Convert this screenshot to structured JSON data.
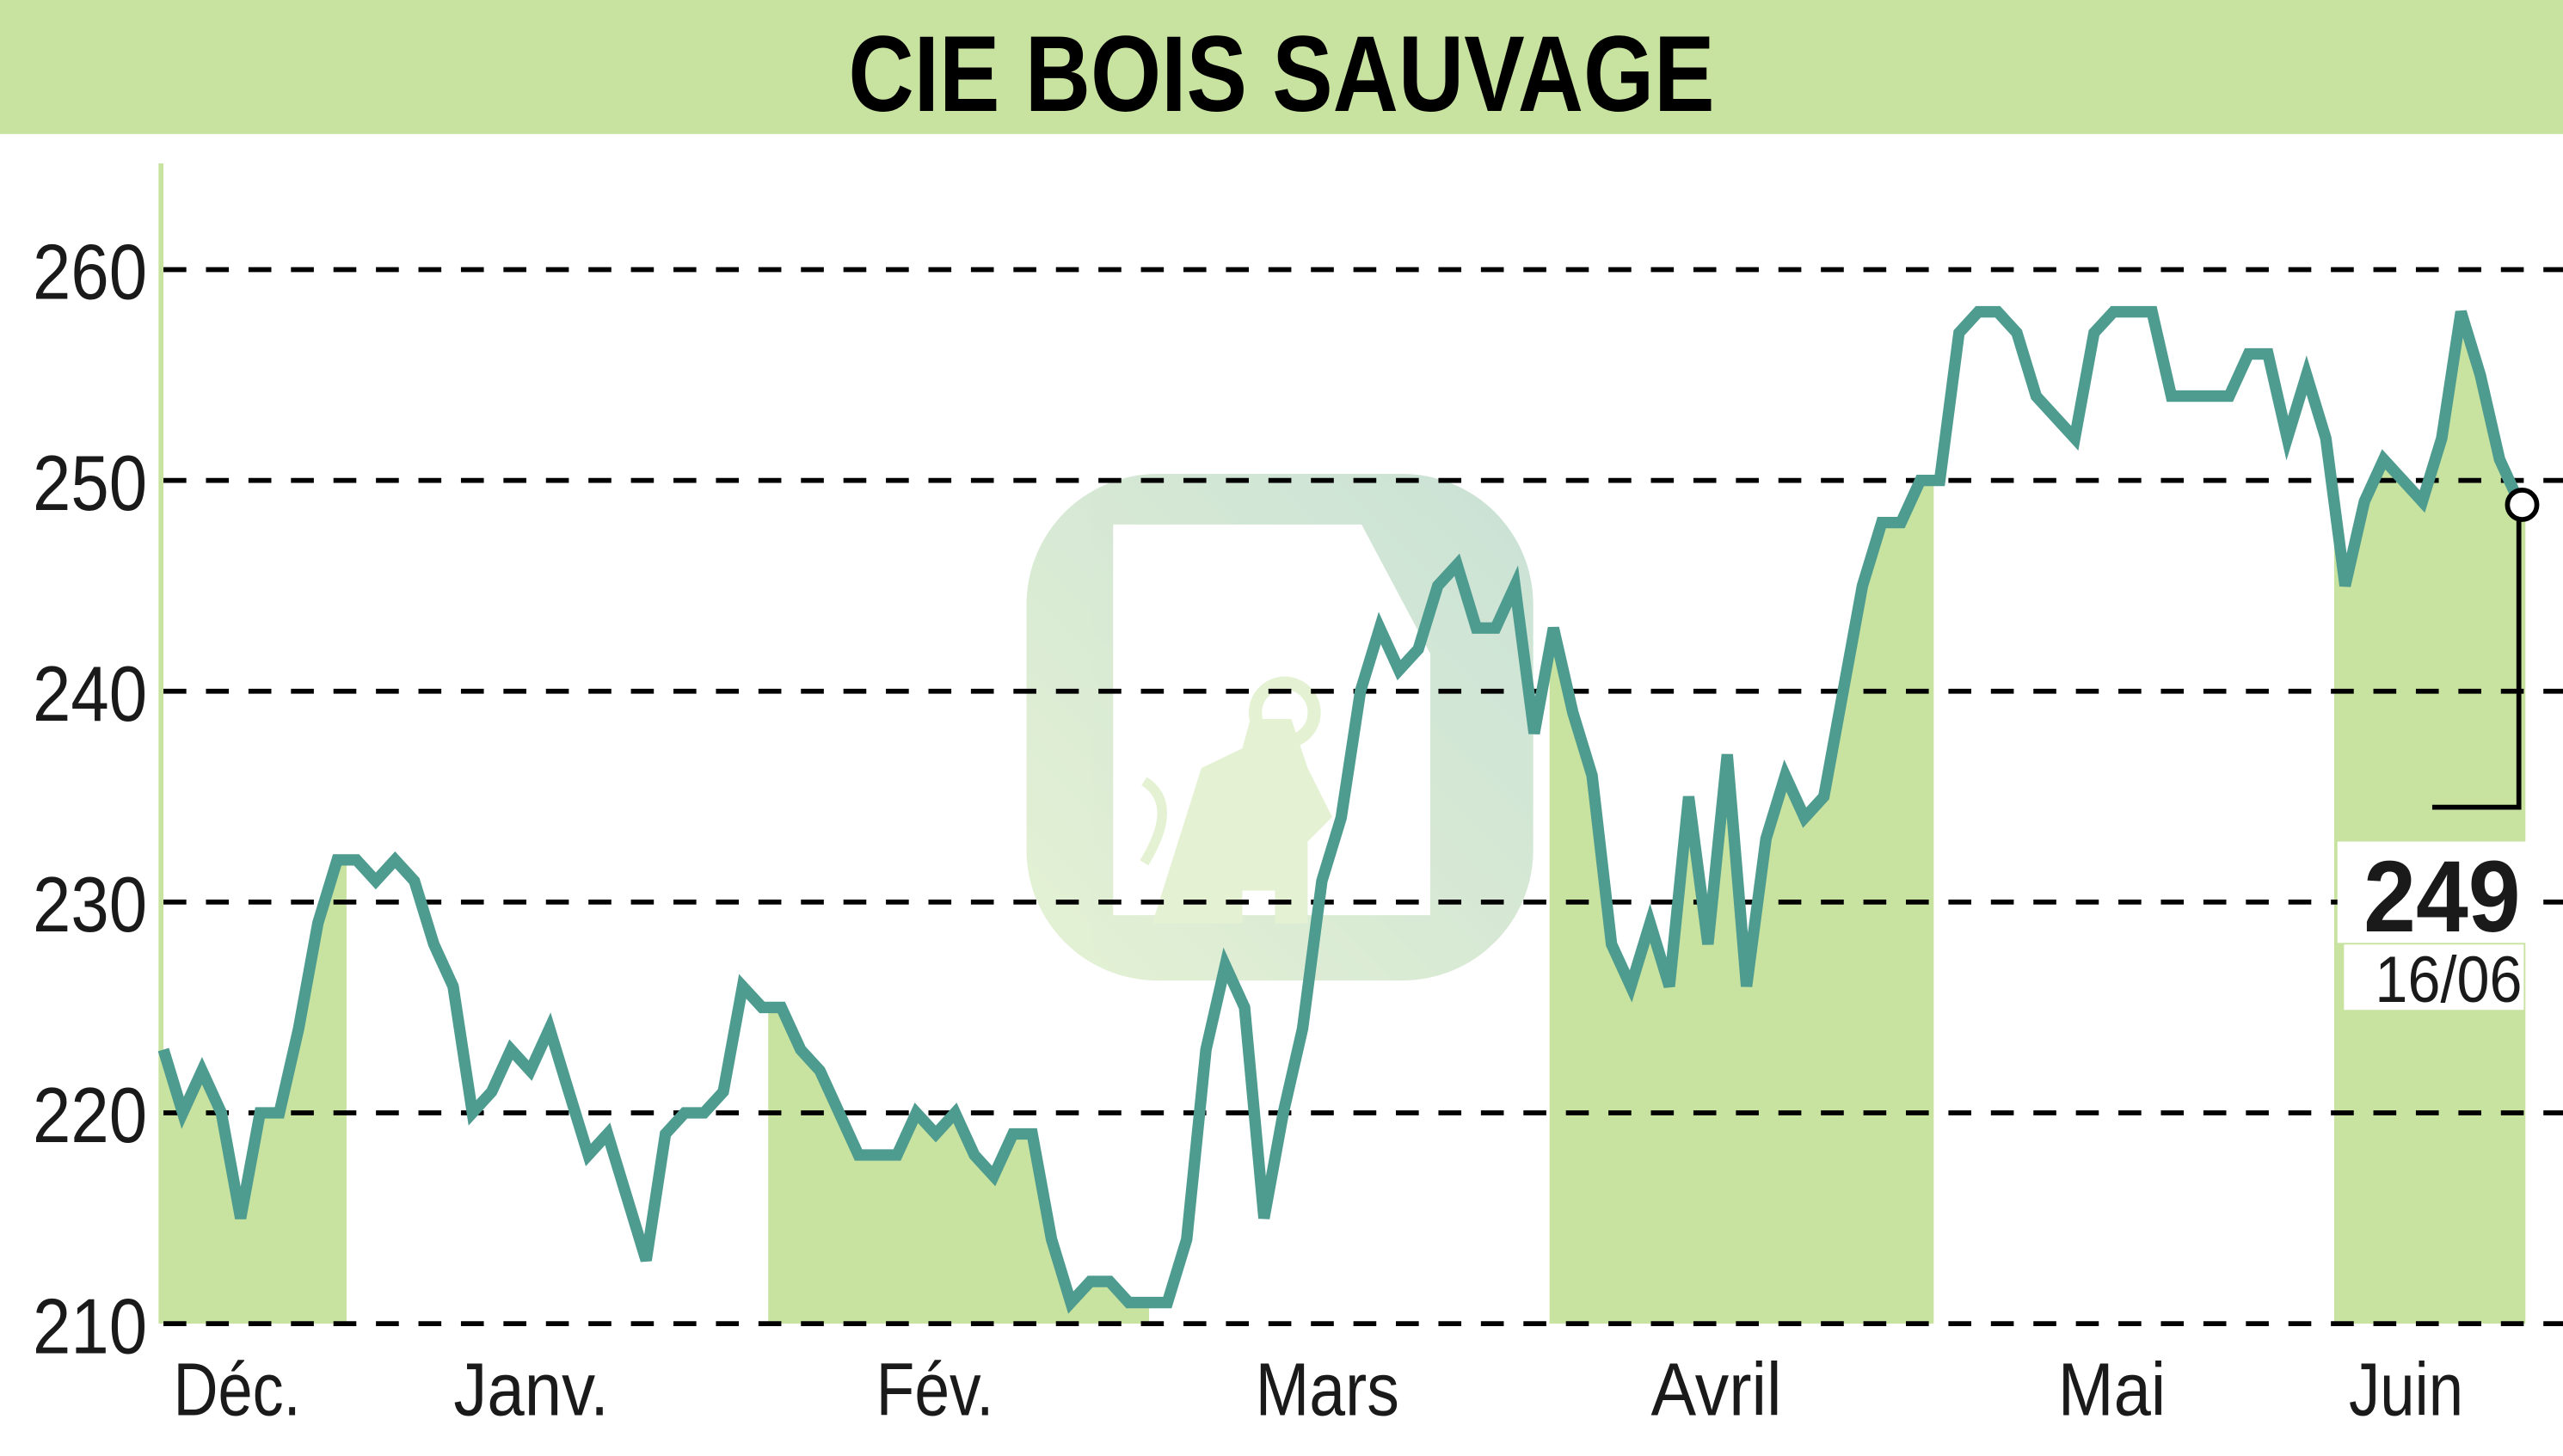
{
  "header": {
    "title": "CIE BOIS SAUVAGE",
    "background": "#c8e29f"
  },
  "colors": {
    "line": "#4e9b8f",
    "band": "#c8e29f",
    "grid": "#000000",
    "text": "#1a1a1a"
  },
  "last_value": {
    "price": "249",
    "date": "16/06"
  },
  "chart_data": {
    "type": "line",
    "title": "CIE BOIS SAUVAGE",
    "xlabel": "",
    "ylabel": "",
    "ylim": [
      210,
      260
    ],
    "yticks": [
      210,
      220,
      230,
      240,
      250,
      260
    ],
    "grid": true,
    "grid_style": "dashed horizontal",
    "legend": "none",
    "month_labels": [
      "Déc.",
      "Janv.",
      "Fév.",
      "Mars",
      "Avril",
      "Mai",
      "Juin"
    ],
    "shaded_months": [
      "Déc.",
      "Fév.",
      "Avril",
      "Juin"
    ],
    "series": [
      {
        "name": "CIE BOIS SAUVAGE",
        "values": [
          223,
          220,
          222,
          220,
          215,
          220,
          220,
          224,
          229,
          232,
          232,
          231,
          232,
          231,
          228,
          226,
          220,
          221,
          223,
          222,
          224,
          221,
          218,
          219,
          216,
          213,
          219,
          220,
          220,
          221,
          226,
          225,
          225,
          223,
          222,
          220,
          218,
          218,
          218,
          220,
          219,
          220,
          218,
          217,
          219,
          219,
          214,
          211,
          212,
          212,
          211,
          211,
          211,
          214,
          223,
          227,
          225,
          215,
          220,
          224,
          231,
          234,
          240,
          243,
          241,
          242,
          245,
          246,
          243,
          243,
          245,
          238,
          243,
          239,
          236,
          228,
          226,
          229,
          226,
          235,
          228,
          237,
          226,
          233,
          236,
          234,
          235,
          240,
          245,
          248,
          248,
          250,
          250,
          257,
          258,
          258,
          257,
          254,
          253,
          252,
          257,
          258,
          258,
          258,
          254,
          254,
          254,
          254,
          256,
          256,
          252,
          255,
          252,
          245,
          249,
          251,
          250,
          249,
          252,
          258,
          255,
          251,
          249
        ]
      }
    ],
    "last": {
      "value": 249,
      "date": "16/06"
    }
  }
}
